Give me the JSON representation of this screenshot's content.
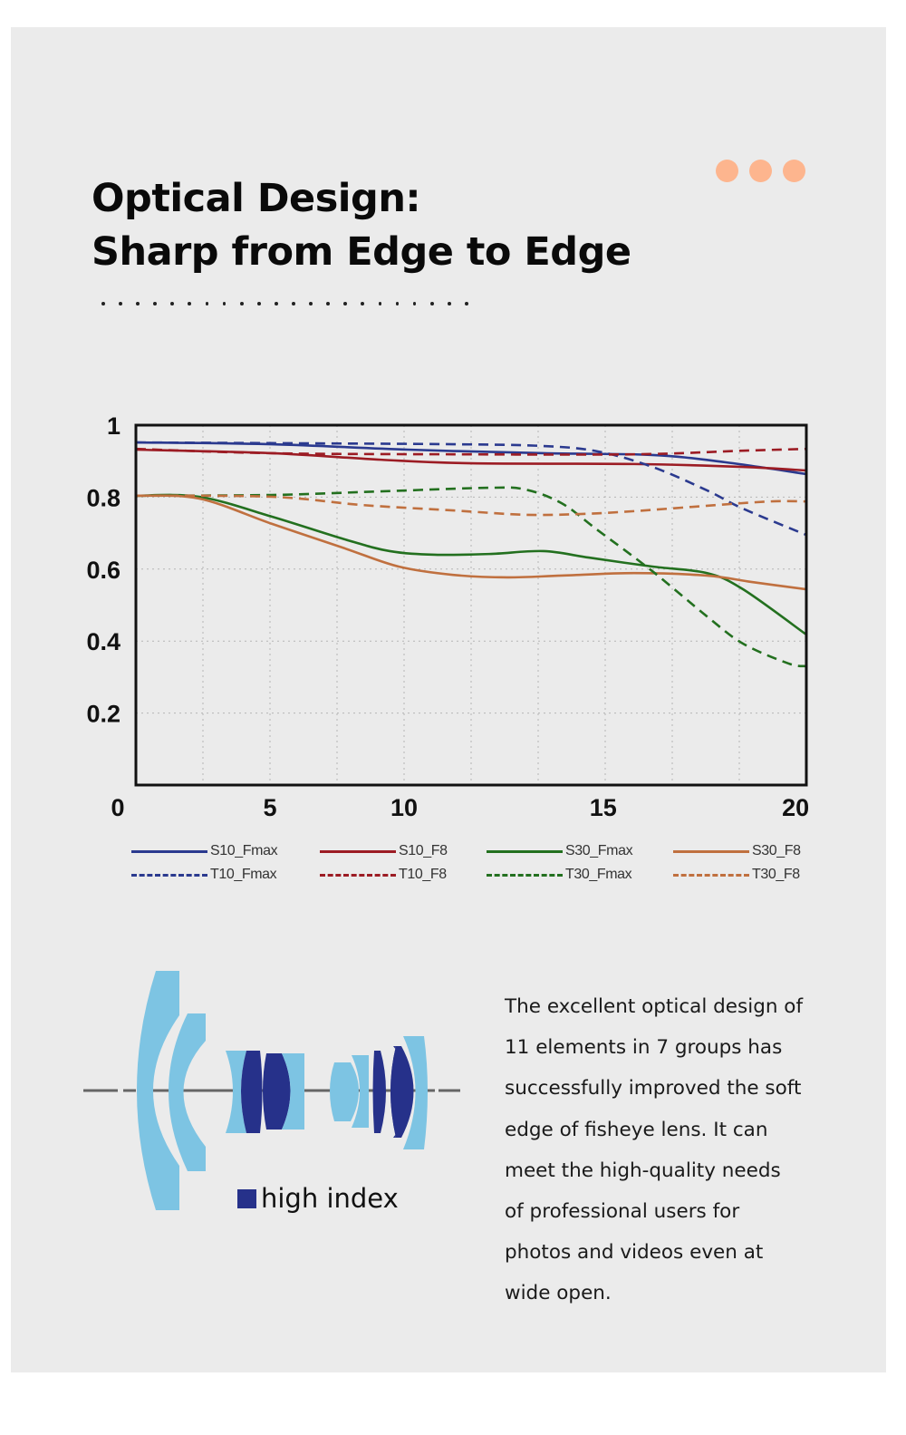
{
  "header": {
    "title_line1": "Optical Design:",
    "title_line2": "Sharp from Edge to Edge",
    "decor_dot_count": 22,
    "accent_dots": [
      "#fdb58e",
      "#fdb58e",
      "#fdb58e"
    ]
  },
  "chart_data": {
    "type": "line",
    "title": "",
    "xlabel": "",
    "ylabel": "",
    "xlim": [
      0,
      20
    ],
    "ylim": [
      0,
      1
    ],
    "grid": true,
    "x_tick_labels": [
      "0",
      "5",
      "10",
      "15",
      "20"
    ],
    "y_tick_labels": [
      "1",
      "0.8",
      "0.6",
      "0.4",
      "0.2"
    ],
    "y_ticks": [
      1,
      0.8,
      0.6,
      0.4,
      0.2
    ],
    "legend_position": "bottom",
    "series": [
      {
        "name": "S10_Fmax",
        "color": "#2b3a8f",
        "dash": false,
        "x": [
          0,
          4.05,
          8.11,
          12.16,
          15.41,
          17.57,
          20
        ],
        "y": [
          0.952,
          0.947,
          0.932,
          0.922,
          0.917,
          0.897,
          0.864
        ]
      },
      {
        "name": "S10_F8",
        "color": "#9c1c24",
        "dash": false,
        "x": [
          0,
          4.05,
          7.3,
          10.0,
          14.86,
          18.11,
          20
        ],
        "y": [
          0.932,
          0.922,
          0.904,
          0.894,
          0.892,
          0.884,
          0.874
        ]
      },
      {
        "name": "S30_Fmax",
        "color": "#23701f",
        "dash": false,
        "x": [
          0,
          1.89,
          4.05,
          6.22,
          7.57,
          8.92,
          10.54,
          12.16,
          13.51,
          15.41,
          17.03,
          18.11,
          20
        ],
        "y": [
          0.804,
          0.801,
          0.746,
          0.683,
          0.65,
          0.64,
          0.642,
          0.65,
          0.632,
          0.607,
          0.589,
          0.544,
          0.418
        ]
      },
      {
        "name": "S30_F8",
        "color": "#c0703f",
        "dash": false,
        "x": [
          0,
          1.89,
          4.05,
          6.22,
          7.84,
          9.46,
          11.08,
          12.7,
          14.86,
          17.03,
          18.38,
          20
        ],
        "y": [
          0.804,
          0.796,
          0.726,
          0.658,
          0.607,
          0.584,
          0.577,
          0.582,
          0.589,
          0.582,
          0.564,
          0.544
        ]
      },
      {
        "name": "T10_Fmax",
        "color": "#2b3a8f",
        "dash": true,
        "x": [
          0,
          4.05,
          9.46,
          12.16,
          13.78,
          15.41,
          17.03,
          18.11,
          20
        ],
        "y": [
          0.952,
          0.95,
          0.947,
          0.942,
          0.927,
          0.884,
          0.819,
          0.768,
          0.695
        ]
      },
      {
        "name": "T10_F8",
        "color": "#9c1c24",
        "dash": true,
        "x": [
          0,
          4.05,
          9.46,
          14.86,
          18.11,
          20
        ],
        "y": [
          0.934,
          0.922,
          0.919,
          0.919,
          0.929,
          0.934
        ]
      },
      {
        "name": "T30_Fmax",
        "color": "#23701f",
        "dash": true,
        "x": [
          0,
          4.05,
          7.3,
          10.54,
          11.62,
          12.7,
          13.78,
          15.41,
          17.03,
          18.11,
          19.46,
          20
        ],
        "y": [
          0.804,
          0.806,
          0.816,
          0.826,
          0.821,
          0.783,
          0.708,
          0.594,
          0.469,
          0.393,
          0.338,
          0.33
        ]
      },
      {
        "name": "T30_F8",
        "color": "#c0703f",
        "dash": true,
        "x": [
          0,
          4.05,
          6.76,
          9.46,
          11.62,
          13.24,
          14.86,
          17.03,
          18.92,
          20
        ],
        "y": [
          0.804,
          0.801,
          0.778,
          0.763,
          0.751,
          0.753,
          0.761,
          0.776,
          0.788,
          0.788
        ]
      }
    ]
  },
  "lens_diagram": {
    "legend_label": "high index",
    "colors": {
      "standard": "#7dc4e3",
      "high_index": "#26318a",
      "axis": "#666666"
    }
  },
  "description": {
    "lines": [
      "The excellent optical design of",
      "11 elements in 7 groups has",
      "successfully improved the soft",
      "edge of fisheye lens. It can",
      "meet the high-quality needs",
      "of professional users for",
      "photos and videos even at",
      "wide open."
    ]
  }
}
